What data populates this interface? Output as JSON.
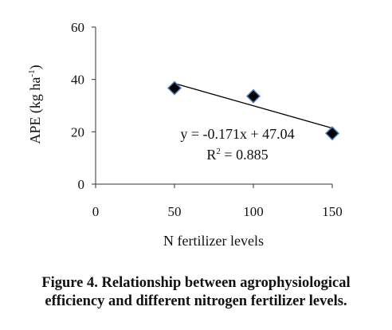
{
  "chart_data": {
    "type": "scatter",
    "series": [
      {
        "x": [
          50,
          100,
          150
        ],
        "y": [
          36.7,
          33.6,
          19.4
        ],
        "marker": "diamond",
        "color": "#000000",
        "edge_color": "#4f7fbf"
      }
    ],
    "trendline": {
      "type": "linear",
      "slope": -0.171,
      "intercept": 47.04,
      "x_range": [
        50,
        150
      ],
      "color": "#000000"
    },
    "xlim": [
      0,
      150
    ],
    "ylim": [
      0,
      60
    ],
    "x_ticks": [
      0,
      50,
      100,
      150
    ],
    "y_ticks": [
      0,
      20,
      40,
      60
    ],
    "x_tick_labels": [
      "0",
      "50",
      "100",
      "150"
    ],
    "y_tick_labels": [
      "0",
      "20",
      "40",
      "60"
    ],
    "xlabel": "N fertilizer levels",
    "ylabel": {
      "main": "APE (kg ha",
      "sup": "-1",
      "close": ")"
    },
    "equation": "y = -0.171x + 47.04",
    "r_squared": {
      "prefix": "R",
      "sup": "2",
      "rest": " = 0.885"
    },
    "grid": false,
    "legend": "none"
  },
  "caption": {
    "line1": "Figure 4. Relationship between agrophysiological",
    "line2": "efficiency and different nitrogen fertilizer levels."
  }
}
